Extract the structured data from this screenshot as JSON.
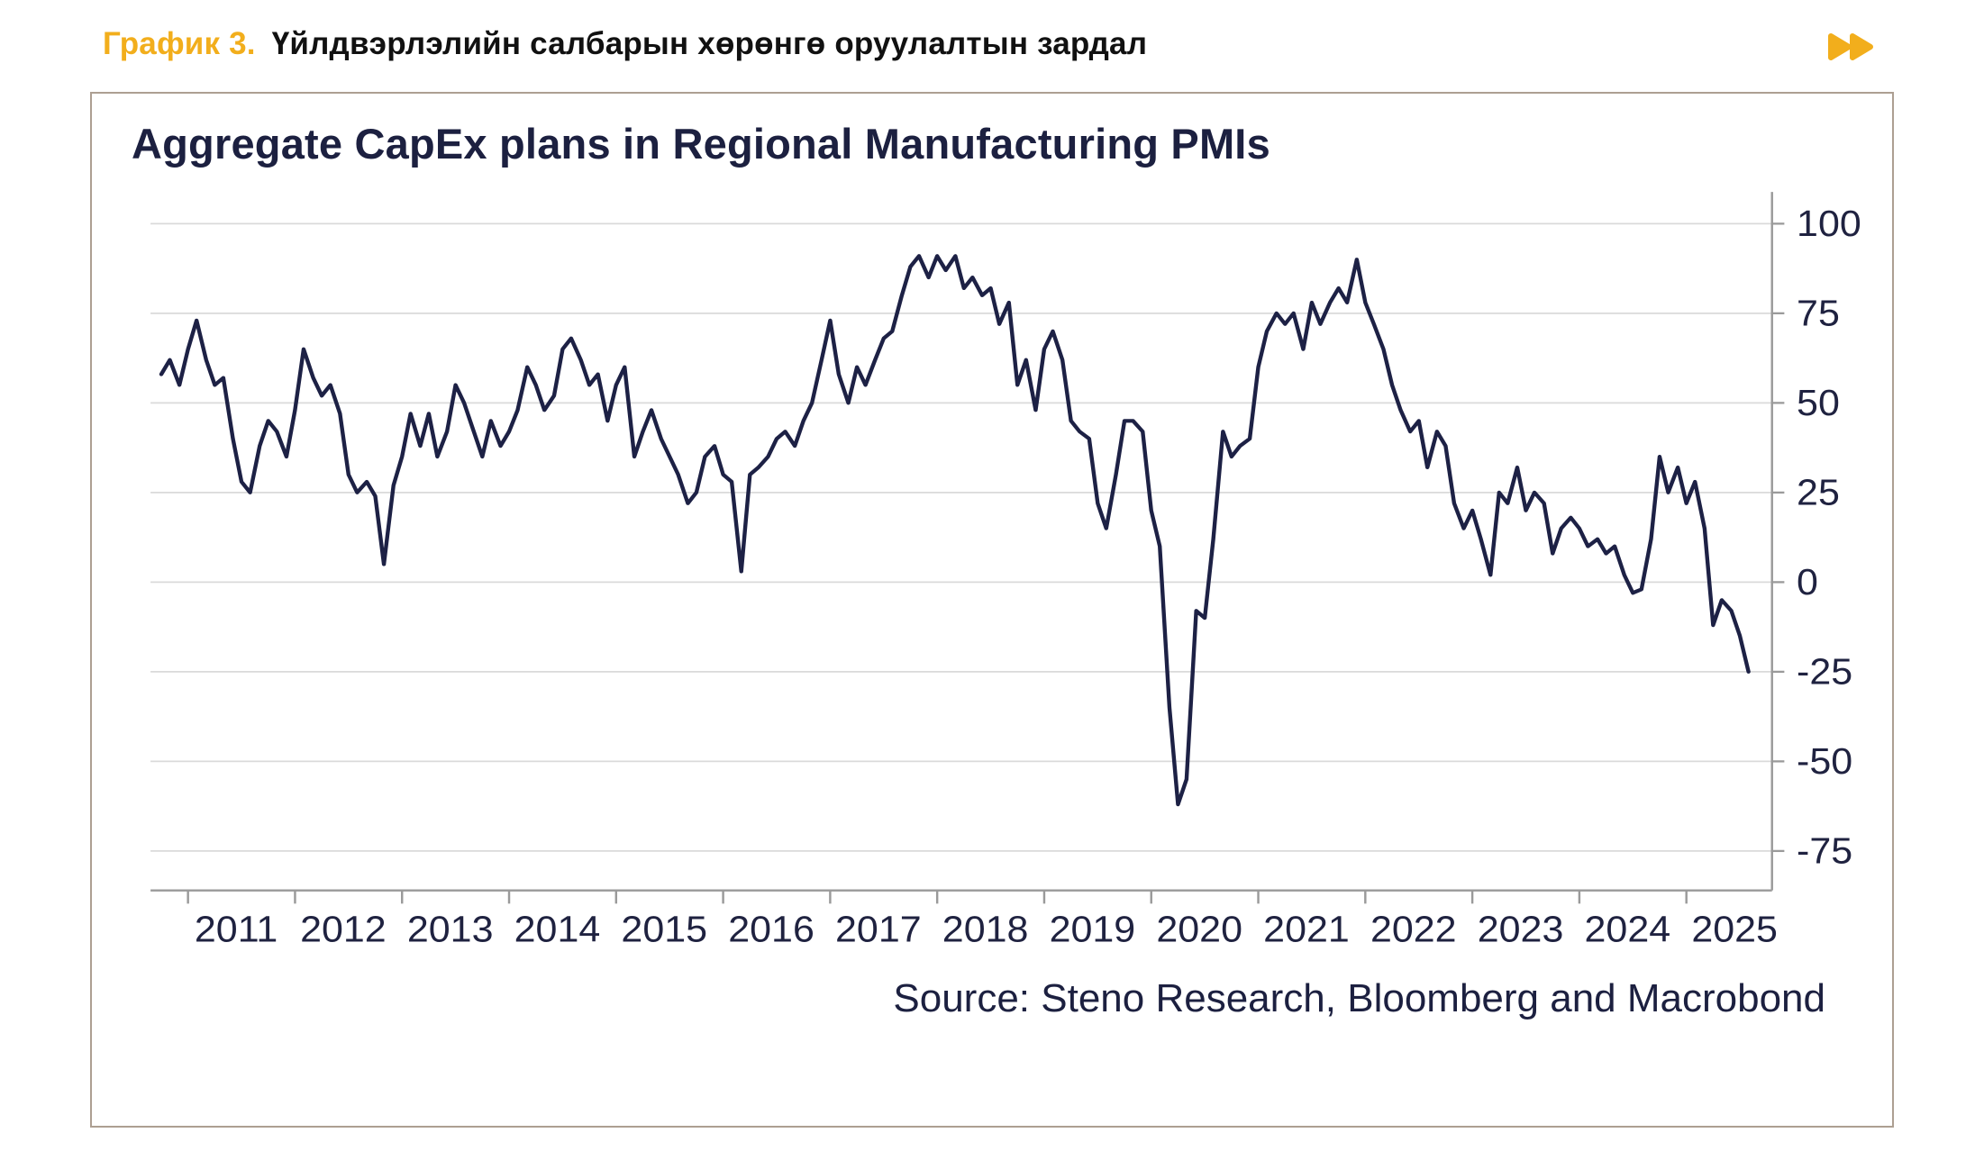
{
  "header": {
    "label": "График 3.",
    "title": "Үйлдвэрлэлийн салбарын хөрөнгө оруулалтын зардал",
    "accent_color": "#F2AE1C"
  },
  "icons": {
    "fast_forward": "fast-forward-double-arrow",
    "fast_forward_color": "#F2AE1C"
  },
  "chart_data": {
    "type": "line",
    "title": "Aggregate CapEx plans in Regional Manufacturing PMIs",
    "source": "Source: Steno Research, Bloomberg and Macrobond",
    "xlabel": "",
    "ylabel": "",
    "x_tick_labels": [
      "2011",
      "2012",
      "2013",
      "2014",
      "2015",
      "2016",
      "2017",
      "2018",
      "2019",
      "2020",
      "2021",
      "2022",
      "2023",
      "2024",
      "2025"
    ],
    "y_ticks": [
      100,
      75,
      50,
      25,
      0,
      -25,
      -50,
      -75
    ],
    "xlim": [
      2010.65,
      2025.8
    ],
    "ylim": [
      -86,
      107
    ],
    "grid": true,
    "legend": "none",
    "line_color": "#1D2145",
    "grid_color": "#DADADA",
    "axis_color": "#9A9A9A",
    "text_color": "#1F2240",
    "series": [
      {
        "name": "Aggregate CapEx plans in Regional Manufacturing PMIs",
        "points": [
          [
            2010.75,
            58
          ],
          [
            2010.83,
            62
          ],
          [
            2010.92,
            55
          ],
          [
            2011.0,
            65
          ],
          [
            2011.08,
            73
          ],
          [
            2011.17,
            62
          ],
          [
            2011.25,
            55
          ],
          [
            2011.33,
            57
          ],
          [
            2011.42,
            40
          ],
          [
            2011.5,
            28
          ],
          [
            2011.58,
            25
          ],
          [
            2011.67,
            38
          ],
          [
            2011.75,
            45
          ],
          [
            2011.83,
            42
          ],
          [
            2011.92,
            35
          ],
          [
            2012.0,
            48
          ],
          [
            2012.08,
            65
          ],
          [
            2012.17,
            57
          ],
          [
            2012.25,
            52
          ],
          [
            2012.33,
            55
          ],
          [
            2012.42,
            47
          ],
          [
            2012.5,
            30
          ],
          [
            2012.58,
            25
          ],
          [
            2012.67,
            28
          ],
          [
            2012.75,
            24
          ],
          [
            2012.83,
            5
          ],
          [
            2012.92,
            27
          ],
          [
            2013.0,
            35
          ],
          [
            2013.08,
            47
          ],
          [
            2013.17,
            38
          ],
          [
            2013.25,
            47
          ],
          [
            2013.33,
            35
          ],
          [
            2013.42,
            42
          ],
          [
            2013.5,
            55
          ],
          [
            2013.58,
            50
          ],
          [
            2013.67,
            42
          ],
          [
            2013.75,
            35
          ],
          [
            2013.83,
            45
          ],
          [
            2013.92,
            38
          ],
          [
            2014.0,
            42
          ],
          [
            2014.08,
            48
          ],
          [
            2014.17,
            60
          ],
          [
            2014.25,
            55
          ],
          [
            2014.33,
            48
          ],
          [
            2014.42,
            52
          ],
          [
            2014.5,
            65
          ],
          [
            2014.58,
            68
          ],
          [
            2014.67,
            62
          ],
          [
            2014.75,
            55
          ],
          [
            2014.83,
            58
          ],
          [
            2014.92,
            45
          ],
          [
            2015.0,
            55
          ],
          [
            2015.08,
            60
          ],
          [
            2015.17,
            35
          ],
          [
            2015.25,
            42
          ],
          [
            2015.33,
            48
          ],
          [
            2015.42,
            40
          ],
          [
            2015.5,
            35
          ],
          [
            2015.58,
            30
          ],
          [
            2015.67,
            22
          ],
          [
            2015.75,
            25
          ],
          [
            2015.83,
            35
          ],
          [
            2015.92,
            38
          ],
          [
            2016.0,
            30
          ],
          [
            2016.08,
            28
          ],
          [
            2016.17,
            3
          ],
          [
            2016.25,
            30
          ],
          [
            2016.33,
            32
          ],
          [
            2016.42,
            35
          ],
          [
            2016.5,
            40
          ],
          [
            2016.58,
            42
          ],
          [
            2016.67,
            38
          ],
          [
            2016.75,
            45
          ],
          [
            2016.83,
            50
          ],
          [
            2016.92,
            62
          ],
          [
            2017.0,
            73
          ],
          [
            2017.08,
            58
          ],
          [
            2017.17,
            50
          ],
          [
            2017.25,
            60
          ],
          [
            2017.33,
            55
          ],
          [
            2017.42,
            62
          ],
          [
            2017.5,
            68
          ],
          [
            2017.58,
            70
          ],
          [
            2017.67,
            80
          ],
          [
            2017.75,
            88
          ],
          [
            2017.83,
            91
          ],
          [
            2017.92,
            85
          ],
          [
            2018.0,
            91
          ],
          [
            2018.08,
            87
          ],
          [
            2018.17,
            91
          ],
          [
            2018.25,
            82
          ],
          [
            2018.33,
            85
          ],
          [
            2018.42,
            80
          ],
          [
            2018.5,
            82
          ],
          [
            2018.58,
            72
          ],
          [
            2018.67,
            78
          ],
          [
            2018.75,
            55
          ],
          [
            2018.83,
            62
          ],
          [
            2018.92,
            48
          ],
          [
            2019.0,
            65
          ],
          [
            2019.08,
            70
          ],
          [
            2019.17,
            62
          ],
          [
            2019.25,
            45
          ],
          [
            2019.33,
            42
          ],
          [
            2019.42,
            40
          ],
          [
            2019.5,
            22
          ],
          [
            2019.58,
            15
          ],
          [
            2019.67,
            30
          ],
          [
            2019.75,
            45
          ],
          [
            2019.83,
            45
          ],
          [
            2019.92,
            42
          ],
          [
            2020.0,
            20
          ],
          [
            2020.08,
            10
          ],
          [
            2020.17,
            -35
          ],
          [
            2020.25,
            -62
          ],
          [
            2020.33,
            -55
          ],
          [
            2020.42,
            -8
          ],
          [
            2020.5,
            -10
          ],
          [
            2020.58,
            12
          ],
          [
            2020.67,
            42
          ],
          [
            2020.75,
            35
          ],
          [
            2020.83,
            38
          ],
          [
            2020.92,
            40
          ],
          [
            2021.0,
            60
          ],
          [
            2021.08,
            70
          ],
          [
            2021.17,
            75
          ],
          [
            2021.25,
            72
          ],
          [
            2021.33,
            75
          ],
          [
            2021.42,
            65
          ],
          [
            2021.5,
            78
          ],
          [
            2021.58,
            72
          ],
          [
            2021.67,
            78
          ],
          [
            2021.75,
            82
          ],
          [
            2021.83,
            78
          ],
          [
            2021.92,
            90
          ],
          [
            2022.0,
            78
          ],
          [
            2022.08,
            72
          ],
          [
            2022.17,
            65
          ],
          [
            2022.25,
            55
          ],
          [
            2022.33,
            48
          ],
          [
            2022.42,
            42
          ],
          [
            2022.5,
            45
          ],
          [
            2022.58,
            32
          ],
          [
            2022.67,
            42
          ],
          [
            2022.75,
            38
          ],
          [
            2022.83,
            22
          ],
          [
            2022.92,
            15
          ],
          [
            2023.0,
            20
          ],
          [
            2023.08,
            12
          ],
          [
            2023.17,
            2
          ],
          [
            2023.25,
            25
          ],
          [
            2023.33,
            22
          ],
          [
            2023.42,
            32
          ],
          [
            2023.5,
            20
          ],
          [
            2023.58,
            25
          ],
          [
            2023.67,
            22
          ],
          [
            2023.75,
            8
          ],
          [
            2023.83,
            15
          ],
          [
            2023.92,
            18
          ],
          [
            2024.0,
            15
          ],
          [
            2024.08,
            10
          ],
          [
            2024.17,
            12
          ],
          [
            2024.25,
            8
          ],
          [
            2024.33,
            10
          ],
          [
            2024.42,
            2
          ],
          [
            2024.5,
            -3
          ],
          [
            2024.58,
            -2
          ],
          [
            2024.67,
            12
          ],
          [
            2024.75,
            35
          ],
          [
            2024.83,
            25
          ],
          [
            2024.92,
            32
          ],
          [
            2025.0,
            22
          ],
          [
            2025.08,
            28
          ],
          [
            2025.17,
            15
          ],
          [
            2025.25,
            -12
          ],
          [
            2025.33,
            -5
          ],
          [
            2025.42,
            -8
          ],
          [
            2025.5,
            -15
          ],
          [
            2025.58,
            -25
          ]
        ]
      }
    ]
  }
}
